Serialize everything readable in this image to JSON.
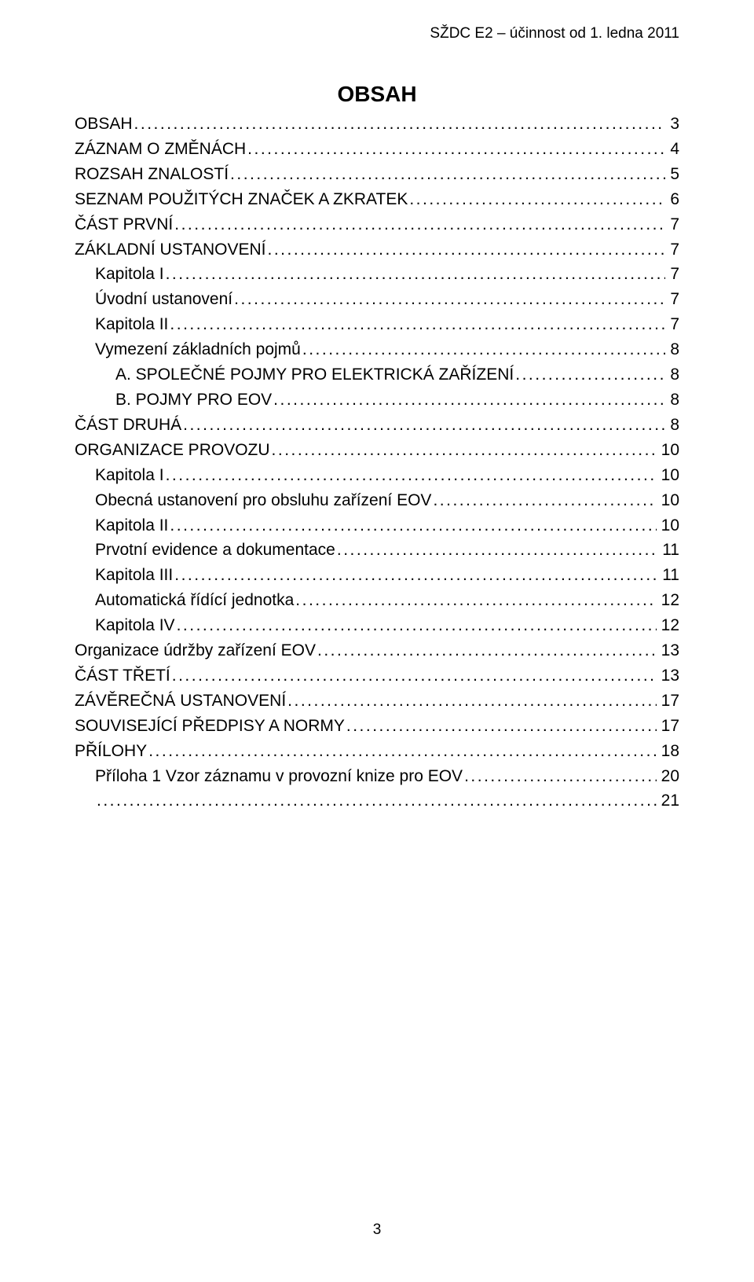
{
  "header": "SŽDC E2 – účinnost od 1. ledna 2011",
  "title": "OBSAH",
  "page_number": "3",
  "toc": [
    {
      "label": "OBSAH",
      "page": "3",
      "indent": 0
    },
    {
      "label": "ZÁZNAM O ZMĚNÁCH",
      "page": "4",
      "indent": 0
    },
    {
      "label": "ROZSAH ZNALOSTÍ",
      "page": "5",
      "indent": 0
    },
    {
      "label": "SEZNAM POUŽITÝCH ZNAČEK A ZKRATEK",
      "page": "6",
      "indent": 0
    },
    {
      "label": "ČÁST PRVNÍ",
      "page": "7",
      "indent": 0
    },
    {
      "label": "ZÁKLADNÍ USTANOVENÍ",
      "page": "7",
      "indent": 0
    },
    {
      "label": "Kapitola I",
      "page": "7",
      "indent": 1
    },
    {
      "label": "Úvodní ustanovení",
      "page": "7",
      "indent": 1
    },
    {
      "label": "Kapitola II",
      "page": "7",
      "indent": 1
    },
    {
      "label": "Vymezení základních pojmů",
      "page": "8",
      "indent": 1
    },
    {
      "label": "A.  SPOLEČNÉ POJMY PRO ELEKTRICKÁ ZAŘÍZENÍ",
      "page": "8",
      "indent": 2
    },
    {
      "label": "B.  POJMY PRO EOV",
      "page": "8",
      "indent": 2
    },
    {
      "label": "ČÁST DRUHÁ",
      "page": "8",
      "indent": 0
    },
    {
      "label": "ORGANIZACE PROVOZU",
      "page": "10",
      "indent": 0
    },
    {
      "label": "Kapitola I",
      "page": "10",
      "indent": 1
    },
    {
      "label": "Obecná ustanovení pro obsluhu zařízení EOV",
      "page": "10",
      "indent": 1
    },
    {
      "label": "Kapitola II",
      "page": "10",
      "indent": 1
    },
    {
      "label": "Prvotní evidence a dokumentace",
      "page": "11",
      "indent": 1
    },
    {
      "label": "Kapitola III",
      "page": "11",
      "indent": 1
    },
    {
      "label": "Automatická řídící jednotka",
      "page": "12",
      "indent": 1
    },
    {
      "label": "Kapitola IV",
      "page": "12",
      "indent": 1
    },
    {
      "label": "Organizace údržby zařízení EOV",
      "page": "13",
      "indent": 0
    },
    {
      "label": "ČÁST TŘETÍ",
      "page": "13",
      "indent": 0
    },
    {
      "label": "ZÁVĚREČNÁ USTANOVENÍ",
      "page": "17",
      "indent": 0
    },
    {
      "label": "SOUVISEJÍCÍ PŘEDPISY A NORMY",
      "page": "17",
      "indent": 0
    },
    {
      "label": "PŘÍLOHY",
      "page": "18",
      "indent": 0
    },
    {
      "label": "Příloha 1 Vzor záznamu v provozní knize pro EOV",
      "page": "20",
      "indent": 1
    },
    {
      "label": "",
      "page": "21",
      "indent": 1,
      "last_blank": true
    }
  ]
}
